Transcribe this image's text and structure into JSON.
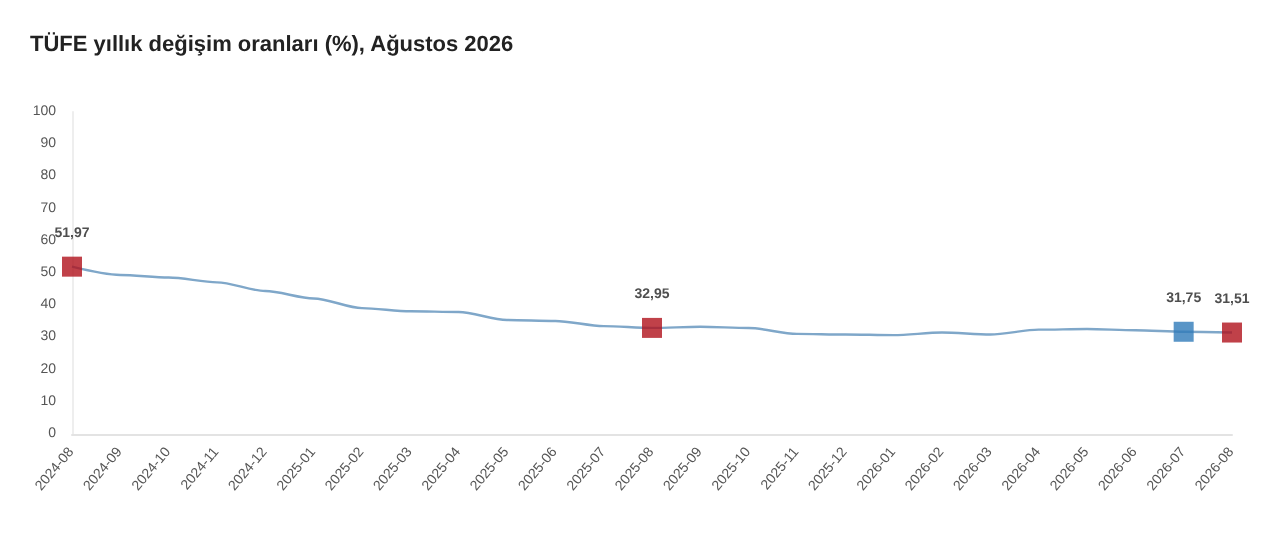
{
  "chart_data": {
    "type": "line",
    "title": "TÜFE yıllık değişim oranları (%), Ağustos 2026",
    "categories": [
      "2024-08",
      "2024-09",
      "2024-10",
      "2024-11",
      "2024-12",
      "2025-01",
      "2025-02",
      "2025-03",
      "2025-04",
      "2025-05",
      "2025-06",
      "2025-07",
      "2025-08",
      "2025-09",
      "2025-10",
      "2025-11",
      "2025-12",
      "2026-01",
      "2026-02",
      "2026-03",
      "2026-04",
      "2026-05",
      "2026-06",
      "2026-07",
      "2026-08"
    ],
    "series": [
      {
        "color": "#7fa7c9",
        "marker": "none",
        "values": [
          51.97,
          49.4,
          48.6,
          47.1,
          44.4,
          42.1,
          39.1,
          38.1,
          37.9,
          35.4,
          35.1,
          33.5,
          32.95,
          33.3,
          32.9,
          31.1,
          30.9,
          30.7,
          31.5,
          30.9,
          32.4,
          32.6,
          32.2,
          31.75,
          31.51
        ]
      },
      {
        "type": "scatter",
        "marker": "square",
        "values": [
          51.97,
          null,
          null,
          null,
          null,
          null,
          null,
          null,
          null,
          null,
          null,
          null,
          32.95,
          null,
          null,
          null,
          null,
          null,
          null,
          null,
          null,
          null,
          null,
          31.75,
          31.51
        ],
        "colors": [
          "#b0121b",
          null,
          null,
          null,
          null,
          null,
          null,
          null,
          null,
          null,
          null,
          null,
          "#b0121b",
          null,
          null,
          null,
          null,
          null,
          null,
          null,
          null,
          null,
          null,
          "#2f7ab9",
          "#b0121b"
        ],
        "value_labels": [
          "51,97",
          null,
          null,
          null,
          null,
          null,
          null,
          null,
          null,
          null,
          null,
          null,
          "32,95",
          null,
          null,
          null,
          null,
          null,
          null,
          null,
          null,
          null,
          null,
          "31,75",
          "31,51"
        ]
      }
    ],
    "ylim": [
      0,
      100
    ],
    "yticks": [
      0,
      10,
      20,
      30,
      40,
      50,
      60,
      70,
      80,
      90,
      100
    ],
    "grid": false
  }
}
